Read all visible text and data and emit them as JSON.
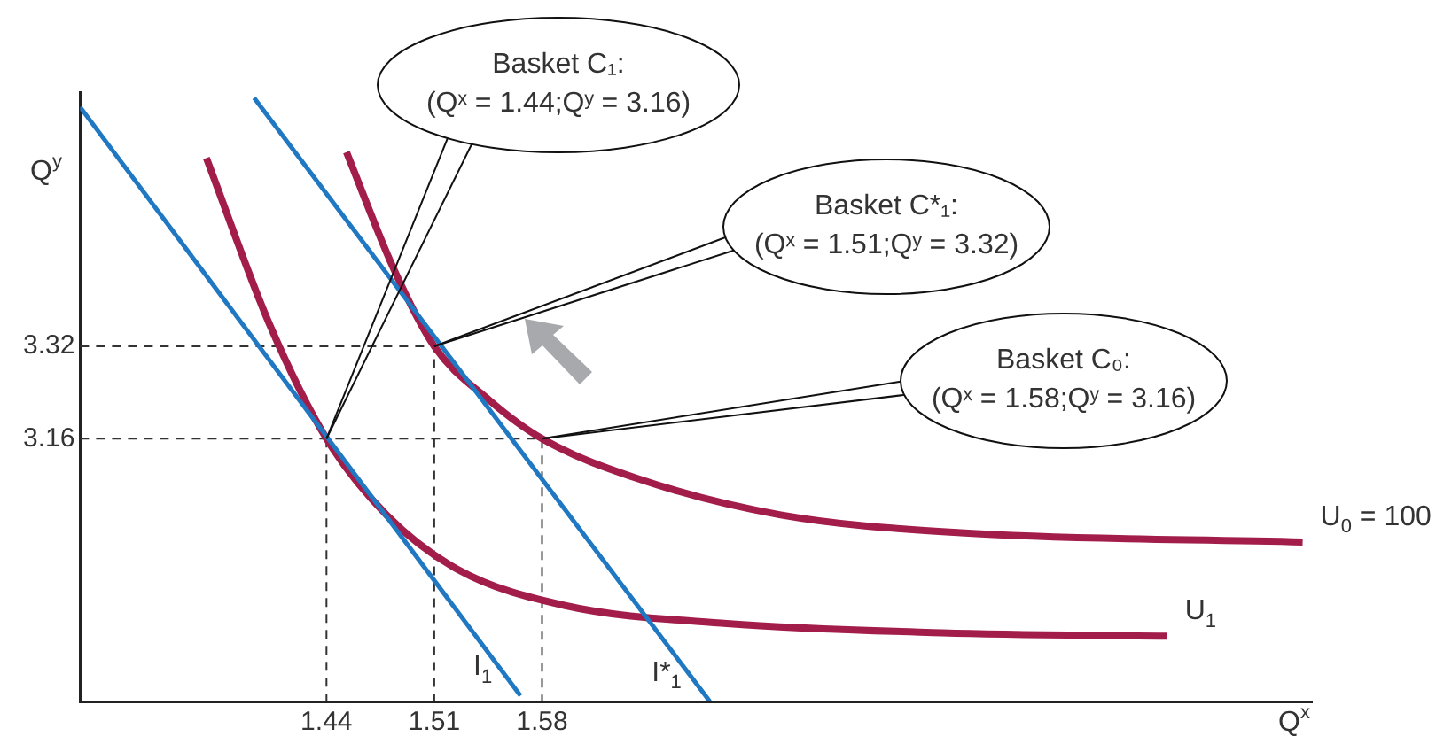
{
  "chart_data": {
    "type": "line",
    "xlabel": "Q$^{x}$",
    "ylabel": "Q$^{y}$",
    "xlim": [
      1.28,
      2.08
    ],
    "ylim": [
      2.705,
      3.76
    ],
    "xticks": [
      1.44,
      1.51,
      1.58
    ],
    "yticks": [
      3.16,
      3.32
    ],
    "series": [
      {
        "name": "I$_{1}$",
        "color": "#1f78c1",
        "line_style": "solid",
        "x": [
          1.28,
          1.566
        ],
        "values": [
          3.734,
          2.715
        ]
      },
      {
        "name": "I*$_{1}$",
        "color": "#1f78c1",
        "line_style": "solid",
        "x": [
          1.393,
          1.689
        ],
        "values": [
          3.75,
          2.705
        ]
      },
      {
        "name": "U$_{1}$",
        "color": "#a31d4a",
        "line_style": "solid",
        "x": [
          1.362,
          1.403,
          1.44,
          1.479,
          1.525,
          1.595,
          1.7,
          1.84,
          1.986
        ],
        "values": [
          3.646,
          3.358,
          3.16,
          3.028,
          2.934,
          2.871,
          2.84,
          2.824,
          2.818
        ]
      },
      {
        "name": "U$_{0}$ = 100",
        "color": "#a31d4a",
        "line_style": "solid",
        "x": [
          1.453,
          1.484,
          1.51,
          1.546,
          1.58,
          1.642,
          1.735,
          1.852,
          2.074
        ],
        "values": [
          3.656,
          3.452,
          3.32,
          3.226,
          3.16,
          3.091,
          3.028,
          2.997,
          2.981
        ]
      },
      {
        "color": "#333333",
        "line_style": "dashed",
        "x": [
          1.28,
          1.58,
          1.58
        ],
        "values": [
          3.16,
          3.16,
          2.705
        ]
      },
      {
        "color": "#333333",
        "line_style": "dashed",
        "x": [
          1.28,
          1.51,
          1.51
        ],
        "values": [
          3.32,
          3.32,
          2.705
        ]
      },
      {
        "color": "#333333",
        "line_style": "dashed",
        "x": [
          1.44,
          1.44
        ],
        "values": [
          3.16,
          2.705
        ]
      }
    ],
    "annotations": [
      "Basket C₁:",
      {
        "text": "(Qˣ = 1.44;Qʸ = 3.16)",
        "x": 1.44,
        "y": 3.16
      },
      "Basket C*₁:",
      {
        "text": "(Qˣ = 1.51;Qʸ = 3.32)",
        "x": 1.51,
        "y": 3.32
      },
      "Basket C₀:",
      {
        "text": "(Qˣ = 1.58;Qʸ = 3.16)",
        "x": 1.58,
        "y": 3.16
      }
    ]
  }
}
